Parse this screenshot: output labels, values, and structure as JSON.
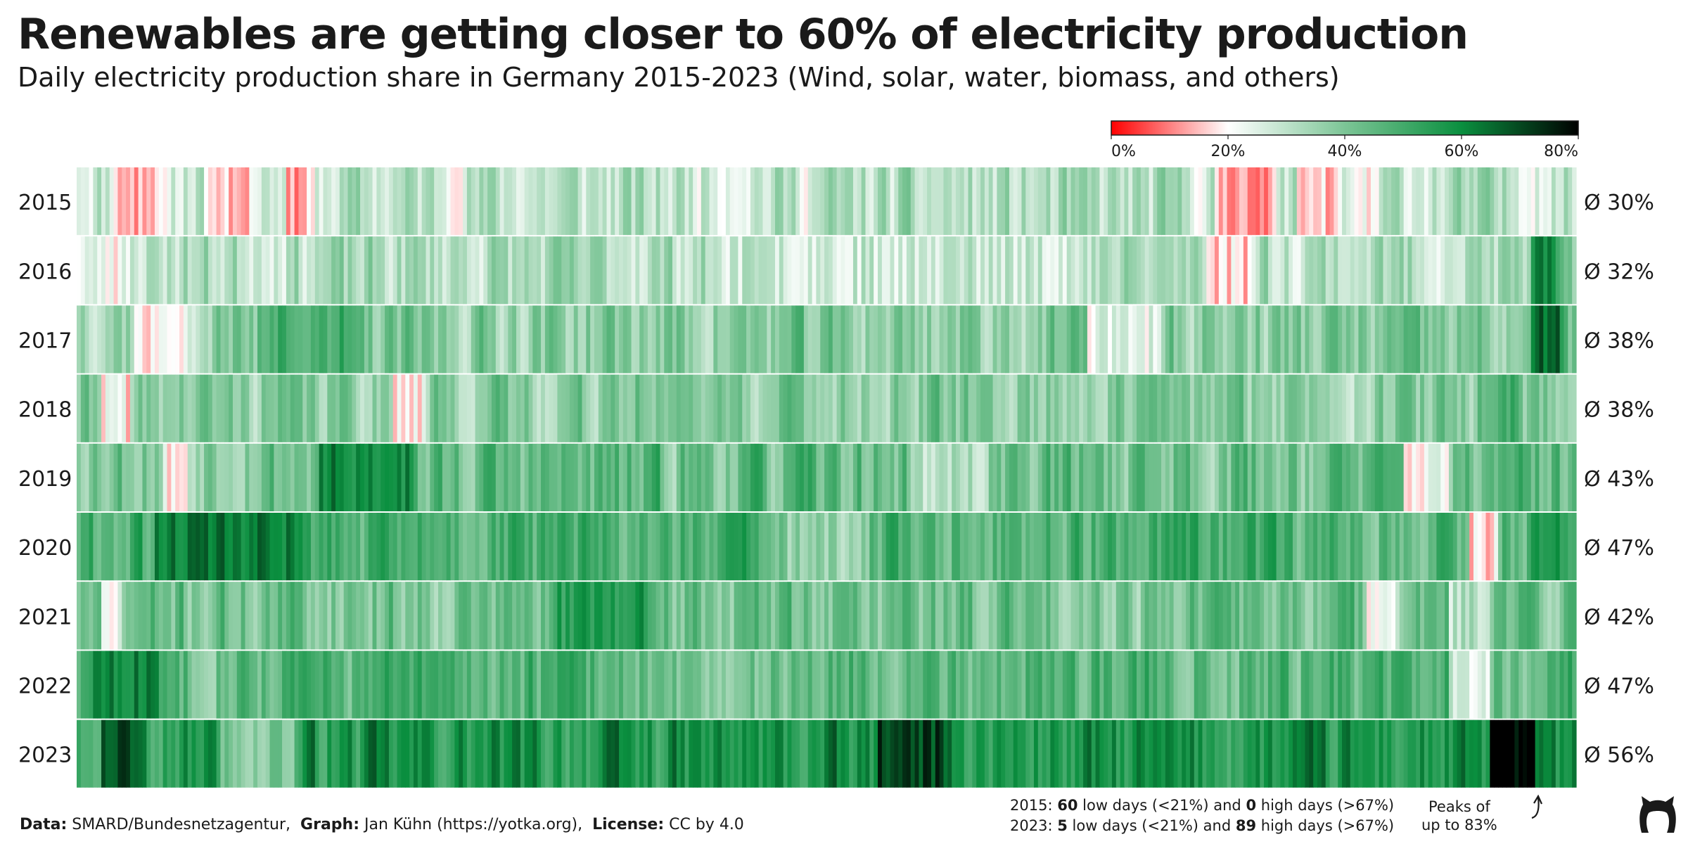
{
  "title": "Renewables are getting closer to 60% of electricity production",
  "subtitle": "Daily electricity production share in Germany 2015-2023 (Wind, solar, water, biomass, and others)",
  "colors": {
    "scale": [
      "#ff0000",
      "#ffffff",
      "#7cc596",
      "#0a8f3f",
      "#000000"
    ],
    "scale_stops": [
      0,
      20,
      40,
      60,
      80
    ]
  },
  "chart_data": {
    "type": "heatmap",
    "x_domain": [
      "Jan 1",
      "Dec 31"
    ],
    "color_range": [
      0,
      80
    ],
    "legend": {
      "ticks": [
        0,
        20,
        40,
        60,
        80
      ],
      "tick_labels": [
        "0%",
        "20%",
        "40%",
        "60%",
        "80%"
      ],
      "placement": "top-right"
    },
    "rows": [
      {
        "year": "2015",
        "avg_label": "Ø 30%",
        "mean": 30,
        "amp": 15,
        "seed": 11,
        "features": [
          {
            "at": 0.04,
            "width": 0.035,
            "value": 14
          },
          {
            "at": 0.1,
            "width": 0.03,
            "value": 17
          },
          {
            "at": 0.148,
            "width": 0.02,
            "value": 14
          },
          {
            "at": 0.78,
            "width": 0.04,
            "value": 13
          },
          {
            "at": 0.83,
            "width": 0.03,
            "value": 16
          },
          {
            "at": 0.86,
            "width": 0.02,
            "value": 18
          }
        ]
      },
      {
        "year": "2016",
        "avg_label": "Ø 32%",
        "mean": 32,
        "amp": 14,
        "seed": 23,
        "features": [
          {
            "at": 0.01,
            "width": 0.05,
            "value": 22
          },
          {
            "at": 0.55,
            "width": 0.25,
            "value": 28
          },
          {
            "at": 0.77,
            "width": 0.03,
            "value": 17
          },
          {
            "at": 0.98,
            "width": 0.015,
            "value": 58
          }
        ]
      },
      {
        "year": "2017",
        "avg_label": "Ø 38%",
        "mean": 38,
        "amp": 15,
        "seed": 37,
        "features": [
          {
            "at": 0.055,
            "width": 0.035,
            "value": 16
          },
          {
            "at": 0.15,
            "width": 0.06,
            "value": 50
          },
          {
            "at": 0.7,
            "width": 0.05,
            "value": 24
          },
          {
            "at": 0.98,
            "width": 0.02,
            "value": 64
          }
        ]
      },
      {
        "year": "2018",
        "avg_label": "Ø 38%",
        "mean": 38,
        "amp": 14,
        "seed": 41,
        "features": [
          {
            "at": 0.025,
            "width": 0.02,
            "value": 19
          },
          {
            "at": 0.22,
            "width": 0.02,
            "value": 18
          },
          {
            "at": 0.4,
            "width": 0.1,
            "value": 40
          },
          {
            "at": 0.95,
            "width": 0.03,
            "value": 48
          }
        ]
      },
      {
        "year": "2019",
        "avg_label": "Ø 43%",
        "mean": 43,
        "amp": 16,
        "seed": 53,
        "features": [
          {
            "at": 0.065,
            "width": 0.015,
            "value": 18
          },
          {
            "at": 0.19,
            "width": 0.06,
            "value": 60
          },
          {
            "at": 0.58,
            "width": 0.05,
            "value": 30
          },
          {
            "at": 0.9,
            "width": 0.03,
            "value": 22
          }
        ]
      },
      {
        "year": "2020",
        "avg_label": "Ø 47%",
        "mean": 47,
        "amp": 15,
        "seed": 61,
        "features": [
          {
            "at": 0.1,
            "width": 0.1,
            "value": 62
          },
          {
            "at": 0.5,
            "width": 0.06,
            "value": 36
          },
          {
            "at": 0.94,
            "width": 0.02,
            "value": 18
          },
          {
            "at": 0.98,
            "width": 0.02,
            "value": 55
          }
        ]
      },
      {
        "year": "2021",
        "avg_label": "Ø 42%",
        "mean": 42,
        "amp": 15,
        "seed": 71,
        "features": [
          {
            "at": 0.02,
            "width": 0.01,
            "value": 20
          },
          {
            "at": 0.35,
            "width": 0.06,
            "value": 56
          },
          {
            "at": 0.87,
            "width": 0.02,
            "value": 22
          },
          {
            "at": 0.93,
            "width": 0.03,
            "value": 30
          }
        ]
      },
      {
        "year": "2022",
        "avg_label": "Ø 47%",
        "mean": 47,
        "amp": 15,
        "seed": 83,
        "features": [
          {
            "at": 0.03,
            "width": 0.04,
            "value": 60
          },
          {
            "at": 0.42,
            "width": 0.08,
            "value": 40
          },
          {
            "at": 0.93,
            "width": 0.03,
            "value": 26
          }
        ]
      },
      {
        "year": "2023",
        "avg_label": "Ø 56%",
        "mean": 56,
        "amp": 15,
        "seed": 97,
        "features": [
          {
            "at": 0.03,
            "width": 0.03,
            "value": 70
          },
          {
            "at": 0.12,
            "width": 0.05,
            "value": 40
          },
          {
            "at": 0.56,
            "width": 0.05,
            "value": 70
          },
          {
            "at": 0.96,
            "width": 0.03,
            "value": 80
          }
        ]
      }
    ]
  },
  "footer": {
    "data_label": "Data:",
    "data_value": "SMARD/Bundesnetzagentur,",
    "graph_label": "Graph:",
    "graph_value": "Jan Kühn (https://yotka.org),",
    "license_label": "License:",
    "license_value": "CC by 4.0"
  },
  "stats": {
    "line1": {
      "year": "2015:",
      "low": "60",
      "low_text": "low days (<21%) and",
      "high": "0",
      "high_text": "high days (>67%)"
    },
    "line2": {
      "year": "2023:",
      "low": "5",
      "low_text": "low days (<21%) and",
      "high": "89",
      "high_text": "high days (>67%)"
    }
  },
  "annotation": {
    "line1": "Peaks of",
    "line2": "up to 83%"
  },
  "logo_icon": "cat-logo-icon"
}
